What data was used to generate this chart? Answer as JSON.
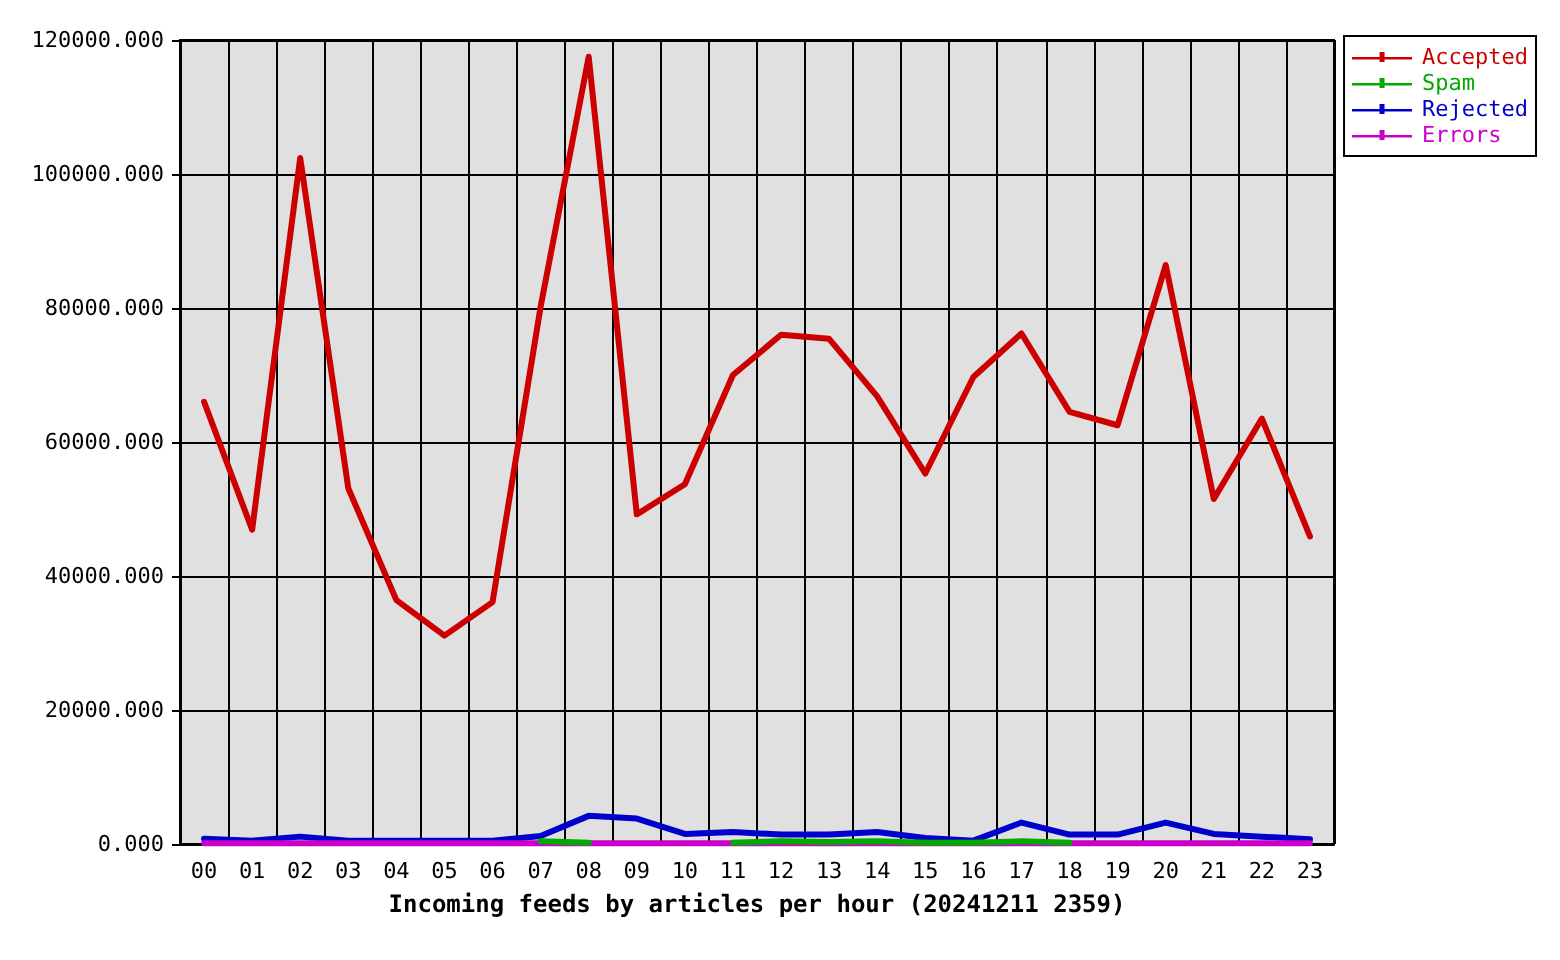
{
  "chart_data": {
    "type": "line",
    "xlabel": "Incoming feeds by articles per hour (20241211 2359)",
    "categories": [
      "00",
      "01",
      "02",
      "03",
      "04",
      "05",
      "06",
      "07",
      "08",
      "09",
      "10",
      "11",
      "12",
      "13",
      "14",
      "15",
      "16",
      "17",
      "18",
      "19",
      "20",
      "21",
      "22",
      "23"
    ],
    "series": [
      {
        "name": "Accepted",
        "color": "#cc0000",
        "values": [
          66000,
          46900,
          102400,
          53100,
          36400,
          31100,
          36100,
          80200,
          117500,
          49200,
          53700,
          70000,
          76000,
          75400,
          66800,
          55300,
          69700,
          76200,
          64500,
          62500,
          86400,
          51500,
          63500,
          45900
        ]
      },
      {
        "name": "Spam",
        "color": "#00aa00",
        "values": [
          null,
          null,
          null,
          null,
          null,
          null,
          null,
          400,
          200,
          null,
          null,
          200,
          400,
          300,
          400,
          200,
          200,
          400,
          200,
          null,
          null,
          null,
          null,
          null
        ]
      },
      {
        "name": "Rejected",
        "color": "#0000cc",
        "values": [
          800,
          500,
          1100,
          500,
          500,
          500,
          500,
          1200,
          4200,
          3800,
          1500,
          1800,
          1400,
          1400,
          1800,
          900,
          500,
          3200,
          1400,
          1400,
          3200,
          1500,
          1100,
          700
        ]
      },
      {
        "name": "Errors",
        "color": "#cc00cc",
        "values": [
          100,
          100,
          100,
          100,
          100,
          100,
          100,
          100,
          100,
          100,
          100,
          100,
          100,
          100,
          100,
          100,
          100,
          100,
          100,
          100,
          100,
          100,
          100,
          100
        ]
      }
    ],
    "ylim": [
      0,
      120000
    ],
    "yticks": [
      {
        "value": 0,
        "label": "0.000"
      },
      {
        "value": 20000,
        "label": "20000.000"
      },
      {
        "value": 40000,
        "label": "40000.000"
      },
      {
        "value": 60000,
        "label": "60000.000"
      },
      {
        "value": 80000,
        "label": "80000.000"
      },
      {
        "value": 100000,
        "label": "100000.000"
      },
      {
        "value": 120000,
        "label": "120000.000"
      }
    ],
    "grid": true,
    "legend": "top right",
    "marker": "none",
    "line_style": "solid"
  }
}
